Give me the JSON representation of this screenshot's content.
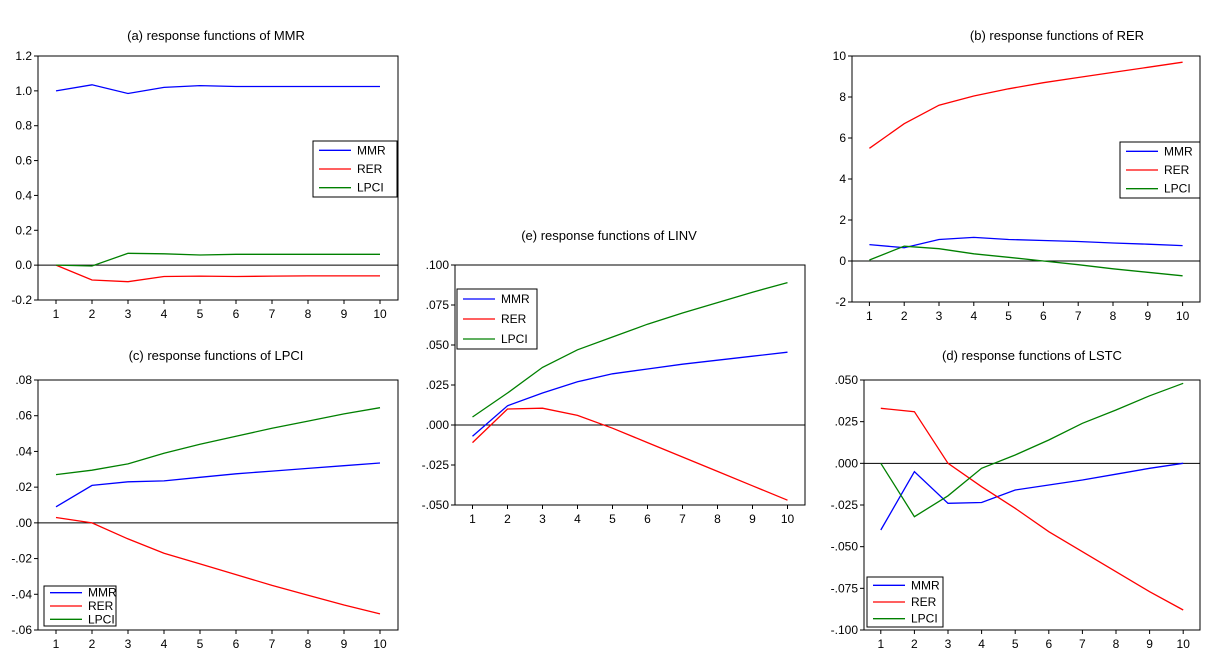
{
  "colors": {
    "MMR": "#0000ff",
    "RER": "#ff0000",
    "LPCI": "#008000",
    "frame": "#000000",
    "zero": "#000000"
  },
  "chart_data": [
    {
      "id": "a",
      "type": "line",
      "title": "(a) response functions of MMR",
      "x": [
        1,
        2,
        3,
        4,
        5,
        6,
        7,
        8,
        9,
        10
      ],
      "xticks": [
        "1",
        "2",
        "3",
        "4",
        "5",
        "6",
        "7",
        "8",
        "9",
        "10"
      ],
      "ylim": [
        -0.2,
        1.2
      ],
      "yticks": [
        "-0.2",
        "0.0",
        "0.2",
        "0.4",
        "0.6",
        "0.8",
        "1.0",
        "1.2"
      ],
      "ytick_values": [
        -0.2,
        0,
        0.2,
        0.4,
        0.6,
        0.8,
        1.0,
        1.2
      ],
      "legend_position": "right-middle",
      "grid": false,
      "series": [
        {
          "name": "MMR",
          "values": [
            1.0,
            1.035,
            0.985,
            1.02,
            1.03,
            1.025,
            1.025,
            1.025,
            1.025,
            1.025
          ]
        },
        {
          "name": "RER",
          "values": [
            0.0,
            -0.085,
            -0.095,
            -0.065,
            -0.063,
            -0.065,
            -0.063,
            -0.062,
            -0.062,
            -0.062
          ]
        },
        {
          "name": "LPCI",
          "values": [
            0.0,
            -0.005,
            0.068,
            0.065,
            0.058,
            0.062,
            0.062,
            0.062,
            0.062,
            0.062
          ]
        }
      ]
    },
    {
      "id": "b",
      "type": "line",
      "title": "(b) response functions of RER",
      "x": [
        1,
        2,
        3,
        4,
        5,
        6,
        7,
        8,
        9,
        10
      ],
      "xticks": [
        "1",
        "2",
        "3",
        "4",
        "5",
        "6",
        "7",
        "8",
        "9",
        "10"
      ],
      "ylim": [
        -2,
        10
      ],
      "yticks": [
        "-2",
        "0",
        "2",
        "4",
        "6",
        "8",
        "10"
      ],
      "ytick_values": [
        -2,
        0,
        2,
        4,
        6,
        8,
        10
      ],
      "legend_position": "right-middle",
      "grid": false,
      "series": [
        {
          "name": "MMR",
          "values": [
            0.8,
            0.65,
            1.05,
            1.15,
            1.05,
            1.0,
            0.95,
            0.88,
            0.82,
            0.75
          ]
        },
        {
          "name": "RER",
          "values": [
            5.5,
            6.7,
            7.6,
            8.05,
            8.4,
            8.7,
            8.95,
            9.2,
            9.45,
            9.7
          ]
        },
        {
          "name": "LPCI",
          "values": [
            0.05,
            0.72,
            0.6,
            0.35,
            0.18,
            0.0,
            -0.18,
            -0.38,
            -0.55,
            -0.72
          ]
        }
      ]
    },
    {
      "id": "c",
      "type": "line",
      "title": "(c) response functions of LPCI",
      "x": [
        1,
        2,
        3,
        4,
        5,
        6,
        7,
        8,
        9,
        10
      ],
      "xticks": [
        "1",
        "2",
        "3",
        "4",
        "5",
        "6",
        "7",
        "8",
        "9",
        "10"
      ],
      "ylim": [
        -0.06,
        0.08
      ],
      "yticks": [
        "-.06",
        "-.04",
        "-.02",
        ".00",
        ".02",
        ".04",
        ".06",
        ".08"
      ],
      "ytick_values": [
        -0.06,
        -0.04,
        -0.02,
        0,
        0.02,
        0.04,
        0.06,
        0.08
      ],
      "legend_position": "bottom-left",
      "grid": false,
      "series": [
        {
          "name": "MMR",
          "values": [
            0.009,
            0.021,
            0.023,
            0.0235,
            0.0255,
            0.0275,
            0.029,
            0.0305,
            0.032,
            0.0335
          ]
        },
        {
          "name": "RER",
          "values": [
            0.003,
            0.0,
            -0.009,
            -0.017,
            -0.023,
            -0.029,
            -0.035,
            -0.0405,
            -0.046,
            -0.051
          ]
        },
        {
          "name": "LPCI",
          "values": [
            0.027,
            0.0295,
            0.033,
            0.039,
            0.044,
            0.0485,
            0.053,
            0.057,
            0.061,
            0.0645
          ]
        }
      ]
    },
    {
      "id": "d",
      "type": "line",
      "title": "(d) response functions of LSTC",
      "x": [
        1,
        2,
        3,
        4,
        5,
        6,
        7,
        8,
        9,
        10
      ],
      "xticks": [
        "1",
        "2",
        "3",
        "4",
        "5",
        "6",
        "7",
        "8",
        "9",
        "10"
      ],
      "ylim": [
        -0.1,
        0.05
      ],
      "yticks": [
        "-.100",
        "-.075",
        "-.050",
        "-.025",
        ".000",
        ".025",
        ".050"
      ],
      "ytick_values": [
        -0.1,
        -0.075,
        -0.05,
        -0.025,
        0,
        0.025,
        0.05
      ],
      "legend_position": "bottom-left",
      "grid": false,
      "series": [
        {
          "name": "MMR",
          "values": [
            -0.04,
            -0.005,
            -0.024,
            -0.0235,
            -0.016,
            -0.013,
            -0.01,
            -0.0065,
            -0.003,
            0.0
          ]
        },
        {
          "name": "RER",
          "values": [
            0.033,
            0.031,
            0.0,
            -0.014,
            -0.027,
            -0.041,
            -0.053,
            -0.065,
            -0.077,
            -0.088
          ]
        },
        {
          "name": "LPCI",
          "values": [
            0.0,
            -0.032,
            -0.0195,
            -0.003,
            0.005,
            0.014,
            0.024,
            0.032,
            0.0405,
            0.048
          ]
        }
      ]
    },
    {
      "id": "e",
      "type": "line",
      "title": "(e) response functions of LINV",
      "x": [
        1,
        2,
        3,
        4,
        5,
        6,
        7,
        8,
        9,
        10
      ],
      "xticks": [
        "1",
        "2",
        "3",
        "4",
        "5",
        "6",
        "7",
        "8",
        "9",
        "10"
      ],
      "ylim": [
        -0.05,
        0.1
      ],
      "yticks": [
        "-.050",
        "-.025",
        ".000",
        ".025",
        ".050",
        ".075",
        ".100"
      ],
      "ytick_values": [
        -0.05,
        -0.025,
        0,
        0.025,
        0.05,
        0.075,
        0.1
      ],
      "legend_position": "top-left",
      "grid": false,
      "series": [
        {
          "name": "MMR",
          "values": [
            -0.007,
            0.012,
            0.02,
            0.027,
            0.032,
            0.035,
            0.038,
            0.0405,
            0.043,
            0.0455
          ]
        },
        {
          "name": "RER",
          "values": [
            -0.011,
            0.01,
            0.0105,
            0.006,
            -0.002,
            -0.011,
            -0.02,
            -0.029,
            -0.038,
            -0.047
          ]
        },
        {
          "name": "LPCI",
          "values": [
            0.005,
            0.02,
            0.036,
            0.047,
            0.055,
            0.063,
            0.07,
            0.0765,
            0.083,
            0.089
          ]
        }
      ]
    }
  ]
}
